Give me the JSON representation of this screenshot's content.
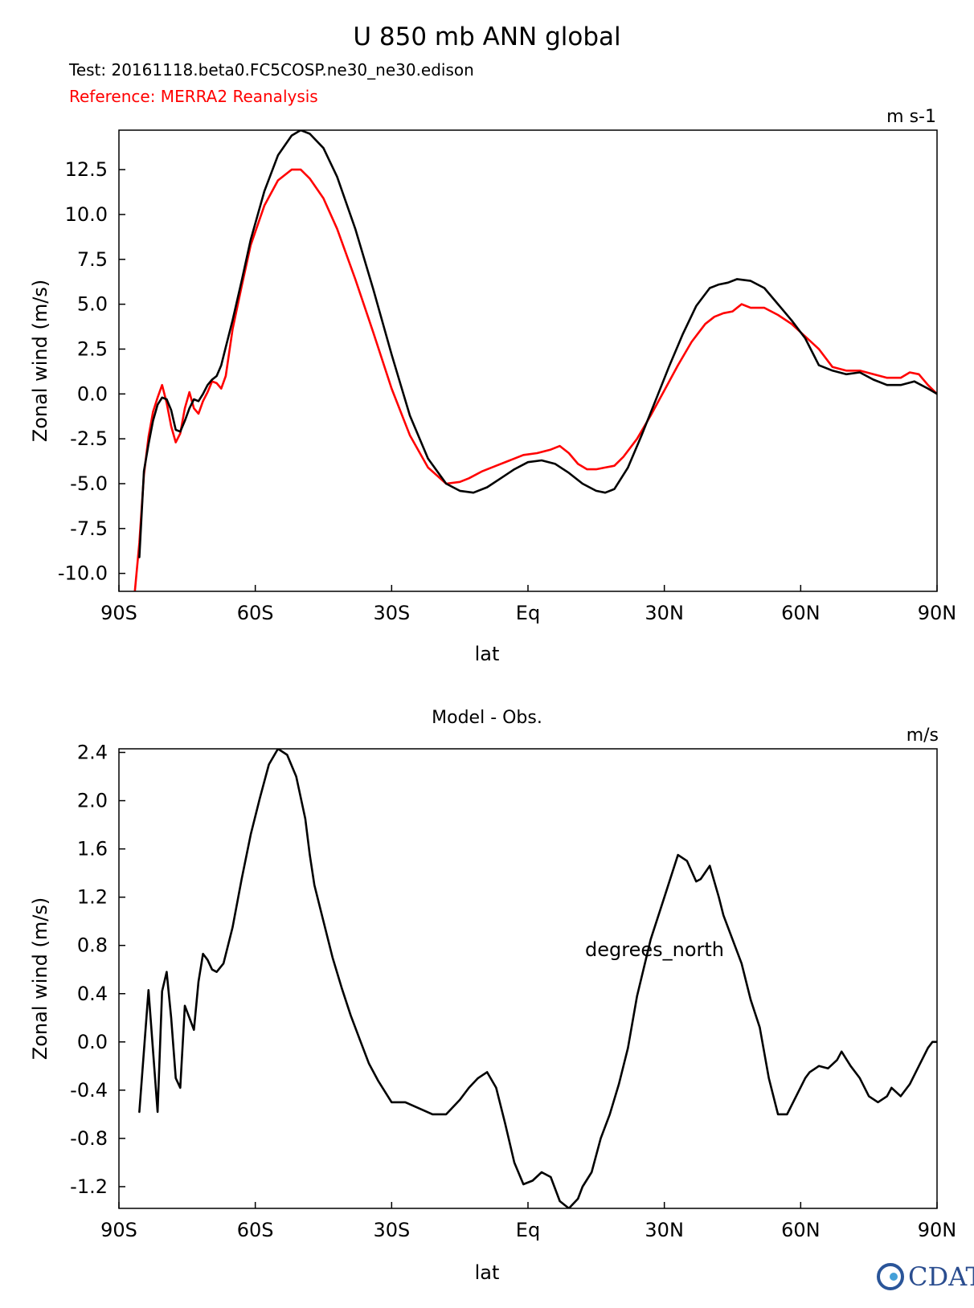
{
  "header": {
    "title": "U 850 mb ANN global",
    "test_label": "Test: 20161118.beta0.FC5COSP.ne30_ne30.edison",
    "reference_label": "Reference: MERRA2 Reanalysis"
  },
  "logo": {
    "text": "CDAT"
  },
  "colors": {
    "test": "#000000",
    "reference": "#ff0000"
  },
  "chart_data": [
    {
      "type": "line",
      "title": "",
      "units": "m s-1",
      "xlabel": "lat",
      "ylabel": "Zonal wind (m/s)",
      "xlim": [
        -90,
        90
      ],
      "ylim": [
        -11,
        14.7
      ],
      "xticks": [
        {
          "value": -90,
          "label": "90S"
        },
        {
          "value": -60,
          "label": "60S"
        },
        {
          "value": -30,
          "label": "30S"
        },
        {
          "value": 0,
          "label": "Eq"
        },
        {
          "value": 30,
          "label": "30N"
        },
        {
          "value": 60,
          "label": "60N"
        },
        {
          "value": 90,
          "label": "90N"
        }
      ],
      "yticks": [
        {
          "value": 12.5,
          "label": "12.5"
        },
        {
          "value": 10,
          "label": "10.0"
        },
        {
          "value": 7.5,
          "label": "7.5"
        },
        {
          "value": 5,
          "label": "5.0"
        },
        {
          "value": 2.5,
          "label": "2.5"
        },
        {
          "value": 0,
          "label": "0.0"
        },
        {
          "value": -2.5,
          "label": "-2.5"
        },
        {
          "value": -5,
          "label": "-5.0"
        },
        {
          "value": -7.5,
          "label": "-7.5"
        },
        {
          "value": -10,
          "label": "-10.0"
        }
      ],
      "series": [
        {
          "role": "test",
          "color": "#000000",
          "x": [
            -85.5,
            -84.5,
            -83.5,
            -82.5,
            -81.5,
            -80.5,
            -79.5,
            -78.5,
            -77.5,
            -76.5,
            -75.5,
            -74.5,
            -73.5,
            -72.5,
            -71.5,
            -70.5,
            -69.5,
            -68.5,
            -67.5,
            -66.5,
            -65,
            -63,
            -61,
            -58,
            -55,
            -52,
            -50,
            -48,
            -45,
            -42,
            -38,
            -34,
            -30,
            -26,
            -22,
            -18,
            -15,
            -12,
            -9,
            -6,
            -3,
            0,
            3,
            6,
            9,
            12,
            15,
            17,
            19,
            22,
            25,
            28,
            31,
            34,
            37,
            40,
            42,
            44,
            46,
            49,
            52,
            55,
            58,
            61,
            64,
            67,
            70,
            73,
            76,
            79,
            82,
            85,
            88,
            90
          ],
          "y": [
            -9.1,
            -4.3,
            -2.8,
            -1.5,
            -0.6,
            -0.2,
            -0.3,
            -0.9,
            -2.0,
            -2.1,
            -1.5,
            -0.8,
            -0.3,
            -0.4,
            0.0,
            0.5,
            0.8,
            1.0,
            1.6,
            2.6,
            4.1,
            6.3,
            8.6,
            11.3,
            13.3,
            14.4,
            14.7,
            14.5,
            13.7,
            12.1,
            9.2,
            5.8,
            2.2,
            -1.2,
            -3.6,
            -5.0,
            -5.4,
            -5.5,
            -5.2,
            -4.7,
            -4.2,
            -3.8,
            -3.7,
            -3.9,
            -4.4,
            -5.0,
            -5.4,
            -5.5,
            -5.3,
            -4.1,
            -2.3,
            -0.4,
            1.5,
            3.3,
            4.9,
            5.9,
            6.1,
            6.2,
            6.4,
            6.3,
            5.9,
            5.0,
            4.1,
            3.1,
            1.6,
            1.3,
            1.1,
            1.2,
            0.8,
            0.5,
            0.5,
            0.7,
            0.3,
            0.0
          ]
        },
        {
          "role": "reference",
          "color": "#ff0000",
          "x": [
            -86.5,
            -85.5,
            -84.5,
            -83.5,
            -82.5,
            -81.5,
            -80.5,
            -79.5,
            -78.5,
            -77.5,
            -76.5,
            -75.5,
            -74.5,
            -73.5,
            -72.5,
            -71.5,
            -70.5,
            -69.5,
            -68.5,
            -67.5,
            -66.5,
            -65,
            -63,
            -61,
            -58,
            -55,
            -52,
            -50,
            -48,
            -45,
            -42,
            -38,
            -34,
            -30,
            -26,
            -22,
            -18,
            -15,
            -13,
            -10,
            -7,
            -4,
            -1,
            2,
            5,
            7,
            9,
            11,
            13,
            15,
            17,
            19,
            21,
            24,
            27,
            30,
            33,
            36,
            39,
            41,
            43,
            45,
            47,
            49,
            52,
            55,
            58,
            61,
            64,
            67,
            70,
            73,
            76,
            79,
            82,
            84,
            86,
            88,
            90
          ],
          "y": [
            -11.0,
            -8.3,
            -4.5,
            -2.4,
            -1.0,
            -0.2,
            0.5,
            -0.5,
            -1.8,
            -2.7,
            -2.2,
            -0.8,
            0.1,
            -0.8,
            -1.1,
            -0.4,
            0.1,
            0.7,
            0.6,
            0.3,
            1.0,
            3.6,
            6.0,
            8.3,
            10.5,
            11.9,
            12.5,
            12.5,
            12.0,
            10.9,
            9.2,
            6.4,
            3.4,
            0.3,
            -2.3,
            -4.1,
            -5.0,
            -4.9,
            -4.7,
            -4.3,
            -4.0,
            -3.7,
            -3.4,
            -3.3,
            -3.1,
            -2.9,
            -3.3,
            -3.9,
            -4.2,
            -4.2,
            -4.1,
            -4.0,
            -3.5,
            -2.5,
            -1.2,
            0.2,
            1.6,
            2.9,
            3.9,
            4.3,
            4.5,
            4.6,
            5.0,
            4.8,
            4.8,
            4.4,
            3.9,
            3.2,
            2.5,
            1.5,
            1.3,
            1.3,
            1.1,
            0.9,
            0.9,
            1.2,
            1.1,
            0.5,
            0.0
          ]
        }
      ]
    },
    {
      "type": "line",
      "title": "Model - Obs.",
      "units": "m/s",
      "xlabel": "lat",
      "ylabel": "Zonal wind (m/s)",
      "annotation": "degrees_north",
      "xlim": [
        -90,
        90
      ],
      "ylim": [
        -1.38,
        2.43
      ],
      "xticks": [
        {
          "value": -90,
          "label": "90S"
        },
        {
          "value": -60,
          "label": "60S"
        },
        {
          "value": -30,
          "label": "30S"
        },
        {
          "value": 0,
          "label": "Eq"
        },
        {
          "value": 30,
          "label": "30N"
        },
        {
          "value": 60,
          "label": "60N"
        },
        {
          "value": 90,
          "label": "90N"
        }
      ],
      "yticks": [
        {
          "value": 2.4,
          "label": "2.4"
        },
        {
          "value": 2.0,
          "label": "2.0"
        },
        {
          "value": 1.6,
          "label": "1.6"
        },
        {
          "value": 1.2,
          "label": "1.2"
        },
        {
          "value": 0.8,
          "label": "0.8"
        },
        {
          "value": 0.4,
          "label": "0.4"
        },
        {
          "value": 0.0,
          "label": "0.0"
        },
        {
          "value": -0.4,
          "label": "-0.4"
        },
        {
          "value": -0.8,
          "label": "-0.8"
        },
        {
          "value": -1.2,
          "label": "-1.2"
        }
      ],
      "series": [
        {
          "role": "difference",
          "color": "#000000",
          "x": [
            -85.5,
            -83.5,
            -81.5,
            -80.5,
            -79.5,
            -78.5,
            -77.5,
            -76.5,
            -75.5,
            -74.5,
            -73.5,
            -72.5,
            -71.5,
            -70.5,
            -69.5,
            -68.5,
            -67,
            -65,
            -63,
            -61,
            -59,
            -57,
            -55,
            -53,
            -51,
            -49,
            -48,
            -47,
            -45,
            -43,
            -41,
            -39,
            -37,
            -35,
            -33,
            -30,
            -27,
            -24,
            -21,
            -18,
            -15,
            -13,
            -11,
            -9,
            -7,
            -5,
            -3,
            -1,
            1,
            3,
            5,
            7,
            9,
            11,
            12,
            14,
            16,
            18,
            20,
            22,
            24,
            27,
            30,
            33,
            35,
            37,
            38,
            40,
            42,
            43,
            45,
            47,
            49,
            51,
            53,
            55,
            57,
            59,
            61,
            62,
            64,
            66,
            68,
            69,
            71,
            73,
            75,
            77,
            79,
            80,
            82,
            84,
            86,
            88,
            89,
            90
          ],
          "y": [
            -0.58,
            0.43,
            -0.58,
            0.42,
            0.58,
            0.2,
            -0.3,
            -0.38,
            0.3,
            0.2,
            0.1,
            0.5,
            0.73,
            0.68,
            0.6,
            0.58,
            0.65,
            0.95,
            1.35,
            1.72,
            2.02,
            2.3,
            2.43,
            2.38,
            2.2,
            1.85,
            1.55,
            1.3,
            1.0,
            0.7,
            0.45,
            0.22,
            0.02,
            -0.18,
            -0.32,
            -0.5,
            -0.5,
            -0.55,
            -0.6,
            -0.6,
            -0.48,
            -0.38,
            -0.3,
            -0.25,
            -0.38,
            -0.68,
            -1.0,
            -1.18,
            -1.15,
            -1.08,
            -1.12,
            -1.32,
            -1.38,
            -1.3,
            -1.2,
            -1.08,
            -0.8,
            -0.6,
            -0.35,
            -0.05,
            0.38,
            0.85,
            1.2,
            1.55,
            1.5,
            1.33,
            1.35,
            1.46,
            1.2,
            1.05,
            0.85,
            0.65,
            0.35,
            0.12,
            -0.3,
            -0.6,
            -0.6,
            -0.45,
            -0.3,
            -0.25,
            -0.2,
            -0.22,
            -0.15,
            -0.08,
            -0.2,
            -0.3,
            -0.45,
            -0.5,
            -0.45,
            -0.38,
            -0.45,
            -0.35,
            -0.2,
            -0.05,
            0.0,
            0.0
          ]
        }
      ]
    }
  ]
}
